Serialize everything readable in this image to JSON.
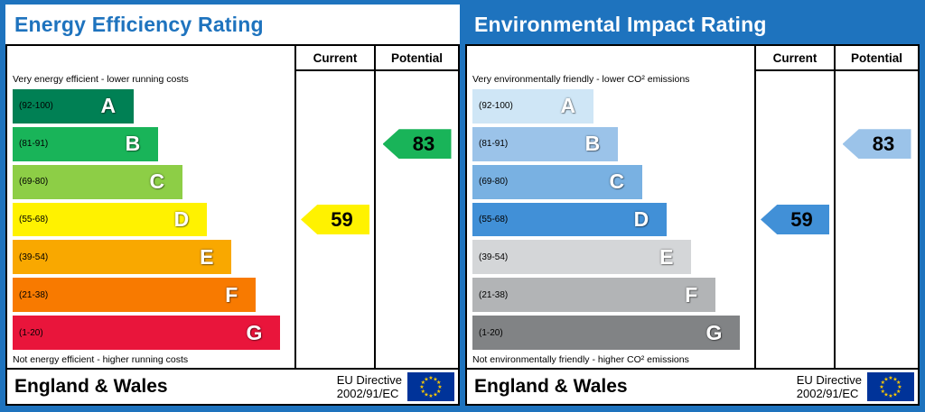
{
  "chart_data": [
    {
      "type": "bar",
      "title": "Energy Efficiency Rating",
      "subtitle_top": "Very energy efficient - lower running costs",
      "subtitle_bottom": "Not energy efficient - higher running costs",
      "categories": [
        "A",
        "B",
        "C",
        "D",
        "E",
        "F",
        "G"
      ],
      "category_ranges": [
        "92-100",
        "81-91",
        "69-80",
        "55-68",
        "39-54",
        "21-38",
        "1-20"
      ],
      "columns": [
        "Current",
        "Potential"
      ],
      "values": {
        "current": 59,
        "current_band": "D",
        "potential": 83,
        "potential_band": "B"
      },
      "scale": [
        1,
        100
      ]
    },
    {
      "type": "bar",
      "title": "Environmental Impact Rating",
      "subtitle_top": "Very environmentally friendly - lower CO² emissions",
      "subtitle_bottom": "Not environmentally friendly - higher CO² emissions",
      "categories": [
        "A",
        "B",
        "C",
        "D",
        "E",
        "F",
        "G"
      ],
      "category_ranges": [
        "92-100",
        "81-91",
        "69-80",
        "55-68",
        "39-54",
        "21-38",
        "1-20"
      ],
      "columns": [
        "Current",
        "Potential"
      ],
      "values": {
        "current": 59,
        "current_band": "D",
        "potential": 83,
        "potential_band": "B"
      },
      "scale": [
        1,
        100
      ]
    }
  ],
  "energy": {
    "title": "Energy Efficiency Rating",
    "col_current": "Current",
    "col_potential": "Potential",
    "top_caption": "Very energy efficient - lower running costs",
    "bottom_caption": "Not energy efficient - higher running costs",
    "bands": [
      {
        "letter": "A",
        "range": "(92-100)",
        "color": "#008054"
      },
      {
        "letter": "B",
        "range": "(81-91)",
        "color": "#19b459"
      },
      {
        "letter": "C",
        "range": "(69-80)",
        "color": "#8dce46"
      },
      {
        "letter": "D",
        "range": "(55-68)",
        "color": "#fff200"
      },
      {
        "letter": "E",
        "range": "(39-54)",
        "color": "#f9a800"
      },
      {
        "letter": "F",
        "range": "(21-38)",
        "color": "#f87a00"
      },
      {
        "letter": "G",
        "range": "(1-20)",
        "color": "#e9153b"
      }
    ],
    "current": {
      "value": "59",
      "color": "#fff200"
    },
    "potential": {
      "value": "83",
      "color": "#19b459"
    }
  },
  "environmental": {
    "title": "Environmental Impact Rating",
    "col_current": "Current",
    "col_potential": "Potential",
    "top_caption": "Very environmentally friendly - lower CO² emissions",
    "bottom_caption": "Not environmentally friendly - higher CO² emissions",
    "bands": [
      {
        "letter": "A",
        "range": "(92-100)",
        "color": "#cfe6f6"
      },
      {
        "letter": "B",
        "range": "(81-91)",
        "color": "#9bc3e9"
      },
      {
        "letter": "C",
        "range": "(69-80)",
        "color": "#79b1e2"
      },
      {
        "letter": "D",
        "range": "(55-68)",
        "color": "#4190d7"
      },
      {
        "letter": "E",
        "range": "(39-54)",
        "color": "#d4d6d8"
      },
      {
        "letter": "F",
        "range": "(21-38)",
        "color": "#b2b4b6"
      },
      {
        "letter": "G",
        "range": "(1-20)",
        "color": "#818385"
      }
    ],
    "current": {
      "value": "59",
      "color": "#4190d7"
    },
    "potential": {
      "value": "83",
      "color": "#9bc3e9"
    }
  },
  "footer": {
    "region": "England & Wales",
    "directive_line1": "EU Directive",
    "directive_line2": "2002/91/EC"
  },
  "colors": {
    "frame_blue": "#1e73be",
    "eu_flag_blue": "#003399",
    "eu_flag_star_yellow": "#ffcc00"
  }
}
